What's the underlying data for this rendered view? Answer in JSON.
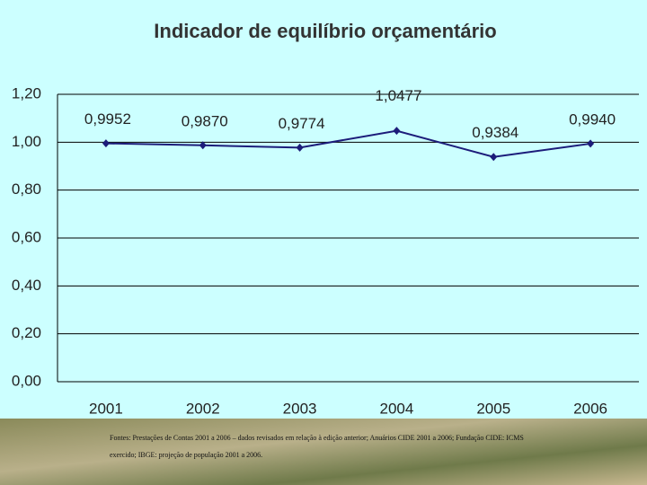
{
  "chart_data": {
    "type": "line",
    "title": "Indicador de equilíbrio orçamentário",
    "categories": [
      "2001",
      "2002",
      "2003",
      "2004",
      "2005",
      "2006"
    ],
    "values": [
      0.9952,
      0.987,
      0.9774,
      1.0477,
      0.9384,
      0.994
    ],
    "value_labels": [
      "0,9952",
      "0,9870",
      "0,9774",
      "1,0477",
      "0,9384",
      "0,9940"
    ],
    "color": "#1c1c7a",
    "ylim": [
      0,
      1.2
    ],
    "yticks": [
      {
        "value": 0,
        "label": "0,00"
      },
      {
        "value": 0.2,
        "label": "0,20"
      },
      {
        "value": 0.4,
        "label": "0,40"
      },
      {
        "value": 0.6,
        "label": "0,60"
      },
      {
        "value": 0.8,
        "label": "0,80"
      },
      {
        "value": 1.0,
        "label": "1,00"
      },
      {
        "value": 1.2,
        "label": "1,20"
      }
    ],
    "grid": true,
    "footnote": "Fontes: Prestações de Contas 2001 a 2006 – dados revisados em relação à edição anterior; Anuários CIDE 2001 a 2006; Fundação CIDE: ICMS exercido; IBGE: projeção de população 2001 a 2006."
  }
}
